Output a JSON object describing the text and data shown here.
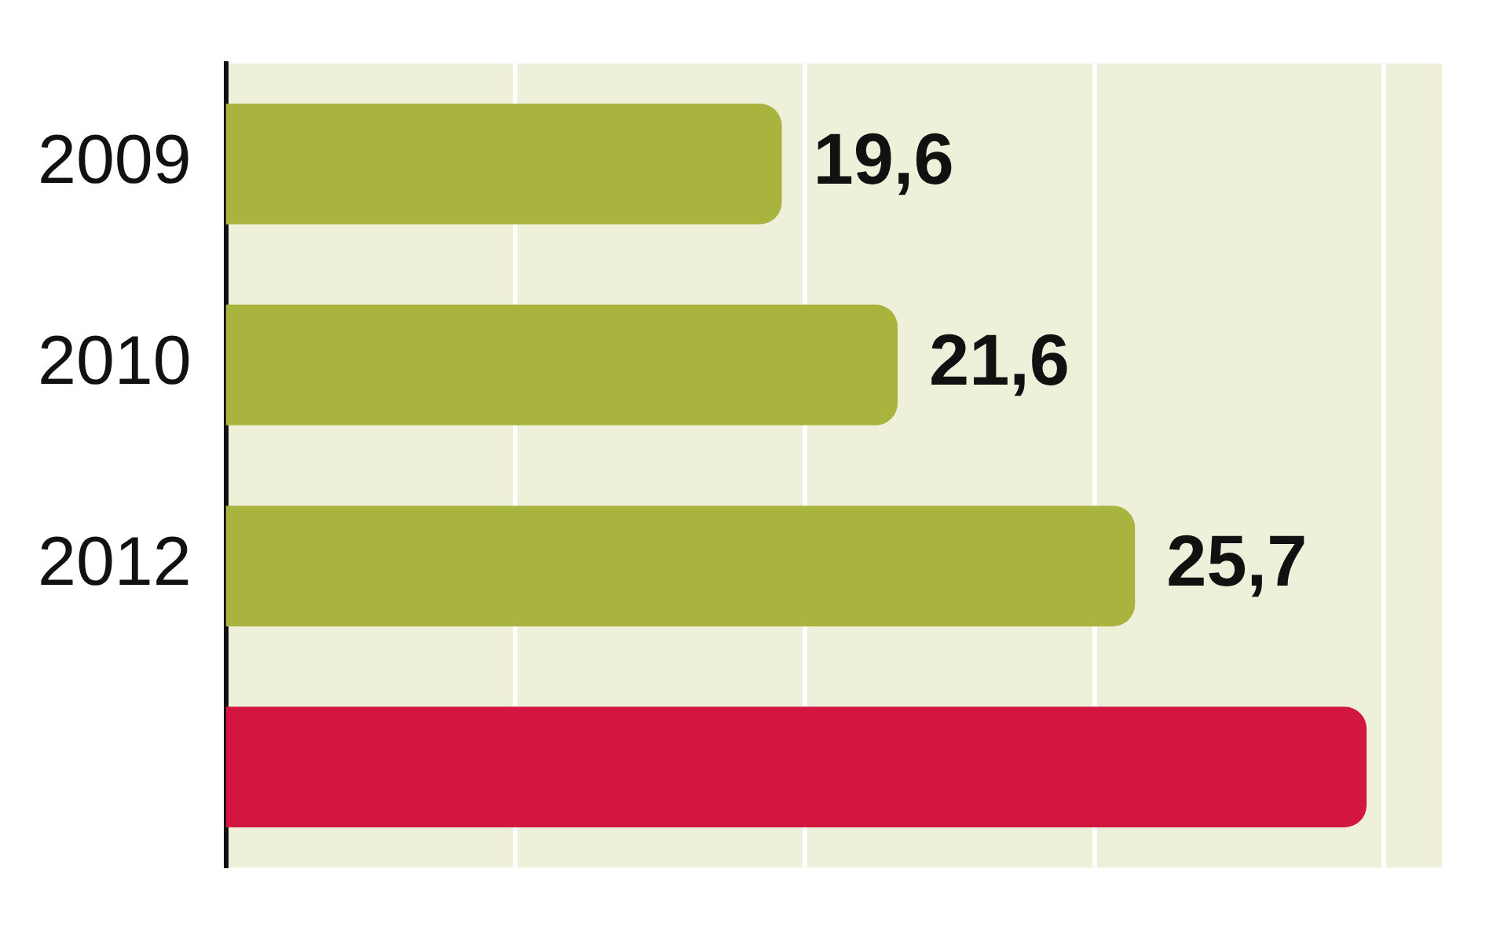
{
  "chart_data": {
    "type": "bar",
    "orientation": "horizontal",
    "categories": [
      "2009",
      "2010",
      "2012",
      null
    ],
    "values": [
      19.6,
      21.6,
      25.7,
      29.7
    ],
    "colors": [
      "#a9b43f",
      "#a9b43f",
      "#a9b43f",
      "#d2163f"
    ],
    "value_labels": [
      "19,6",
      "21,6",
      "25,7",
      null
    ],
    "xlim": [
      10,
      31
    ],
    "xticks": [
      {
        "value": 15,
        "label": null
      },
      {
        "value": 20,
        "label": null
      },
      {
        "value": 25,
        "label": null
      },
      {
        "value": 30,
        "label": null
      }
    ],
    "grid": "x",
    "tick_labels": "y",
    "legend": false
  }
}
